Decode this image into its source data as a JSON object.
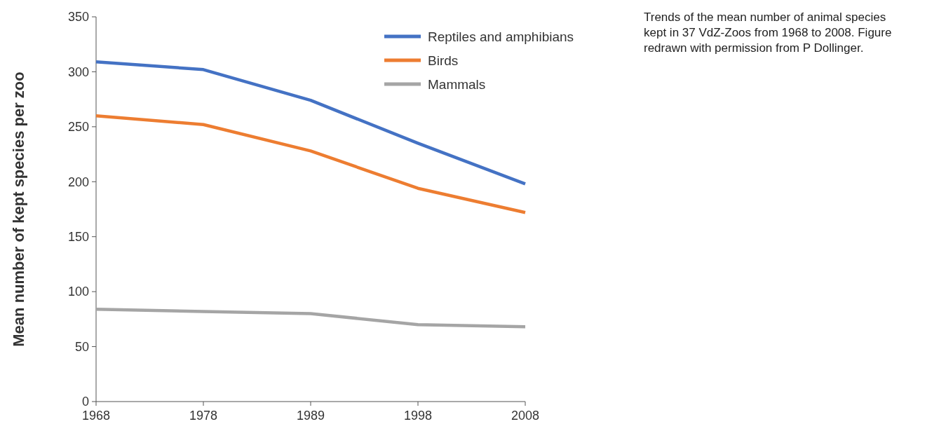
{
  "chart_data": {
    "type": "line",
    "ylabel": "Mean number of kept species per zoo",
    "categories": [
      "1968",
      "1978",
      "1989",
      "1998",
      "2008"
    ],
    "series": [
      {
        "name": "Reptiles and amphibians",
        "color": "#4472c4",
        "values": [
          309,
          302,
          274,
          235,
          198
        ]
      },
      {
        "name": "Birds",
        "color": "#ed7d31",
        "values": [
          260,
          252,
          228,
          194,
          172
        ]
      },
      {
        "name": "Mammals",
        "color": "#a5a5a5",
        "values": [
          84,
          82,
          80,
          70,
          68
        ]
      }
    ],
    "ylim": [
      0,
      350
    ],
    "yticks": [
      0,
      50,
      100,
      150,
      200,
      250,
      300,
      350
    ],
    "grid": false,
    "legend": "top right",
    "marker": "none",
    "line_style": "solid",
    "annotations": [
      "Trends of the mean number of animal species kept in 37 VdZ-Zoos from 1968 to 2008. Figure redrawn with permission from P Dollinger."
    ]
  }
}
